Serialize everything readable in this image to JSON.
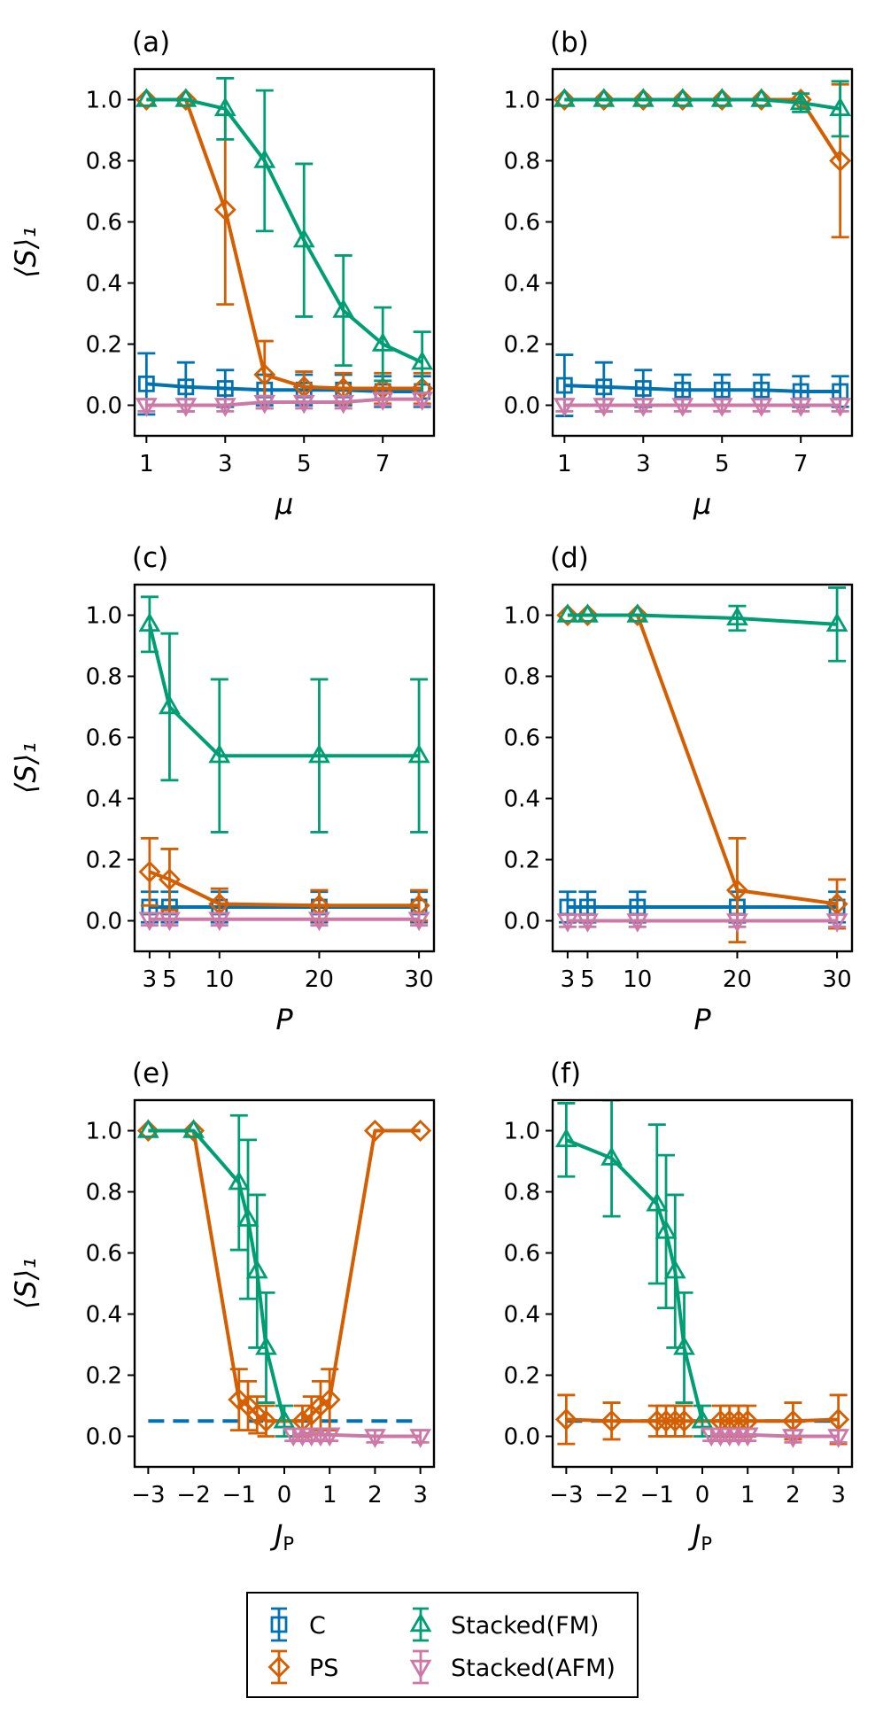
{
  "series_info": [
    {
      "key": "C",
      "label": "C",
      "color": "#0072B2",
      "marker": "square"
    },
    {
      "key": "PS",
      "label": "PS",
      "color": "#D55E00",
      "marker": "diamond"
    },
    {
      "key": "FM",
      "label": "Stacked(FM)",
      "color": "#009E73",
      "marker": "triangle-up"
    },
    {
      "key": "AFM",
      "label": "Stacked(AFM)",
      "color": "#CC79A7",
      "marker": "triangle-down"
    }
  ],
  "chart_data": [
    {
      "type": "line",
      "panel": "(a)",
      "xlabel": "μ",
      "ylabel": "⟨S⟩₁",
      "xlim": [
        0.7,
        8.3
      ],
      "ylim": [
        -0.1,
        1.1
      ],
      "xticks": [
        1,
        3,
        5,
        7
      ],
      "xticklabels": [
        "1",
        "3",
        "5",
        "7"
      ],
      "yticks": [
        0.0,
        0.2,
        0.4,
        0.6,
        0.8,
        1.0
      ],
      "yticklabels": [
        "0.0",
        "0.2",
        "0.4",
        "0.6",
        "0.8",
        "1.0"
      ],
      "series": [
        {
          "key": "C",
          "x": [
            1,
            2,
            3,
            4,
            5,
            6,
            7,
            8
          ],
          "y": [
            0.07,
            0.06,
            0.055,
            0.05,
            0.05,
            0.05,
            0.045,
            0.045
          ],
          "err": [
            0.1,
            0.08,
            0.06,
            0.05,
            0.05,
            0.05,
            0.05,
            0.05
          ]
        },
        {
          "key": "PS",
          "x": [
            1,
            2,
            3,
            4,
            5,
            6,
            7,
            8
          ],
          "y": [
            1.0,
            1.0,
            0.64,
            0.1,
            0.06,
            0.055,
            0.055,
            0.055
          ],
          "err": [
            0,
            0,
            0.31,
            0.11,
            0.05,
            0.05,
            0.05,
            0.05
          ]
        },
        {
          "key": "FM",
          "x": [
            1,
            2,
            3,
            4,
            5,
            6,
            7,
            8
          ],
          "y": [
            1.0,
            1.0,
            0.97,
            0.8,
            0.54,
            0.31,
            0.2,
            0.14
          ],
          "err": [
            0,
            0,
            0.1,
            0.23,
            0.25,
            0.18,
            0.12,
            0.1
          ]
        },
        {
          "key": "AFM",
          "x": [
            1,
            2,
            3,
            4,
            5,
            6,
            7,
            8
          ],
          "y": [
            0.0,
            0.0,
            0.0,
            0.01,
            0.01,
            0.01,
            0.02,
            0.02
          ],
          "err": [
            0.02,
            0.02,
            0.02,
            0.02,
            0.02,
            0.02,
            0.02,
            0.02
          ]
        }
      ]
    },
    {
      "type": "line",
      "panel": "(b)",
      "xlabel": "μ",
      "ylabel": "",
      "xlim": [
        0.7,
        8.3
      ],
      "ylim": [
        -0.1,
        1.1
      ],
      "xticks": [
        1,
        3,
        5,
        7
      ],
      "xticklabels": [
        "1",
        "3",
        "5",
        "7"
      ],
      "yticks": [
        0.0,
        0.2,
        0.4,
        0.6,
        0.8,
        1.0
      ],
      "yticklabels": [
        "0.0",
        "0.2",
        "0.4",
        "0.6",
        "0.8",
        "1.0"
      ],
      "series": [
        {
          "key": "C",
          "x": [
            1,
            2,
            3,
            4,
            5,
            6,
            7,
            8
          ],
          "y": [
            0.065,
            0.06,
            0.055,
            0.05,
            0.05,
            0.05,
            0.045,
            0.045
          ],
          "err": [
            0.1,
            0.08,
            0.06,
            0.05,
            0.05,
            0.05,
            0.05,
            0.05
          ]
        },
        {
          "key": "PS",
          "x": [
            1,
            2,
            3,
            4,
            5,
            6,
            7,
            8
          ],
          "y": [
            1.0,
            1.0,
            1.0,
            1.0,
            1.0,
            1.0,
            1.0,
            0.8
          ],
          "err": [
            0,
            0,
            0,
            0,
            0,
            0,
            0,
            0.25
          ]
        },
        {
          "key": "FM",
          "x": [
            1,
            2,
            3,
            4,
            5,
            6,
            7,
            8
          ],
          "y": [
            1.0,
            1.0,
            1.0,
            1.0,
            1.0,
            1.0,
            0.99,
            0.97
          ],
          "err": [
            0,
            0,
            0,
            0,
            0,
            0,
            0.03,
            0.09
          ]
        },
        {
          "key": "AFM",
          "x": [
            1,
            2,
            3,
            4,
            5,
            6,
            7,
            8
          ],
          "y": [
            0.0,
            0.0,
            0.0,
            0.0,
            0.0,
            0.0,
            0.0,
            0.0
          ],
          "err": [
            0.02,
            0.02,
            0.02,
            0.02,
            0.02,
            0.02,
            0.02,
            0.02
          ]
        }
      ]
    },
    {
      "type": "line",
      "panel": "(c)",
      "xlabel": "P",
      "ylabel": "⟨S⟩₁",
      "xlim": [
        1.5,
        31.5
      ],
      "ylim": [
        -0.1,
        1.1
      ],
      "xticks": [
        3,
        5,
        10,
        20,
        30
      ],
      "xticklabels": [
        "3",
        "5",
        "10",
        "20",
        "30"
      ],
      "yticks": [
        0.0,
        0.2,
        0.4,
        0.6,
        0.8,
        1.0
      ],
      "yticklabels": [
        "0.0",
        "0.2",
        "0.4",
        "0.6",
        "0.8",
        "1.0"
      ],
      "series": [
        {
          "key": "C",
          "x": [
            3,
            5,
            10,
            20,
            30
          ],
          "y": [
            0.045,
            0.045,
            0.045,
            0.045,
            0.045
          ],
          "err": [
            0.05,
            0.05,
            0.05,
            0.05,
            0.05
          ]
        },
        {
          "key": "PS",
          "x": [
            3,
            5,
            10,
            20,
            30
          ],
          "y": [
            0.16,
            0.135,
            0.055,
            0.05,
            0.05
          ],
          "err": [
            0.11,
            0.1,
            0.05,
            0.05,
            0.05
          ]
        },
        {
          "key": "FM",
          "x": [
            3,
            5,
            10,
            20,
            30
          ],
          "y": [
            0.97,
            0.7,
            0.54,
            0.54,
            0.54
          ],
          "err": [
            0.09,
            0.24,
            0.25,
            0.25,
            0.25
          ]
        },
        {
          "key": "AFM",
          "x": [
            3,
            5,
            10,
            20,
            30
          ],
          "y": [
            0.005,
            0.005,
            0.005,
            0.005,
            0.005
          ],
          "err": [
            0.02,
            0.02,
            0.02,
            0.02,
            0.02
          ]
        }
      ]
    },
    {
      "type": "line",
      "panel": "(d)",
      "xlabel": "P",
      "ylabel": "",
      "xlim": [
        1.5,
        31.5
      ],
      "ylim": [
        -0.1,
        1.1
      ],
      "xticks": [
        3,
        5,
        10,
        20,
        30
      ],
      "xticklabels": [
        "3",
        "5",
        "10",
        "20",
        "30"
      ],
      "yticks": [
        0.0,
        0.2,
        0.4,
        0.6,
        0.8,
        1.0
      ],
      "yticklabels": [
        "0.0",
        "0.2",
        "0.4",
        "0.6",
        "0.8",
        "1.0"
      ],
      "series": [
        {
          "key": "C",
          "x": [
            3,
            5,
            10,
            20,
            30
          ],
          "y": [
            0.045,
            0.045,
            0.045,
            0.045,
            0.045
          ],
          "err": [
            0.05,
            0.05,
            0.05,
            0.05,
            0.05
          ]
        },
        {
          "key": "PS",
          "x": [
            3,
            5,
            10,
            20,
            30
          ],
          "y": [
            1.0,
            1.0,
            1.0,
            0.1,
            0.055
          ],
          "err": [
            0,
            0,
            0,
            0.17,
            0.08
          ]
        },
        {
          "key": "FM",
          "x": [
            3,
            5,
            10,
            20,
            30
          ],
          "y": [
            1.0,
            1.0,
            1.0,
            0.99,
            0.97
          ],
          "err": [
            0,
            0,
            0,
            0.04,
            0.12
          ]
        },
        {
          "key": "AFM",
          "x": [
            3,
            5,
            10,
            20,
            30
          ],
          "y": [
            0.0,
            0.0,
            0.0,
            0.0,
            0.0
          ],
          "err": [
            0.02,
            0.02,
            0.02,
            0.02,
            0.02
          ]
        }
      ]
    },
    {
      "type": "line",
      "panel": "(e)",
      "xlabel": "J",
      "xlabel_sub": "P",
      "ylabel": "⟨S⟩₁",
      "xlim": [
        -3.3,
        3.3
      ],
      "ylim": [
        -0.1,
        1.1
      ],
      "xticks": [
        -3,
        -2,
        -1,
        0,
        1,
        2,
        3
      ],
      "xticklabels": [
        "−3",
        "−2",
        "−1",
        "0",
        "1",
        "2",
        "3"
      ],
      "yticks": [
        0.0,
        0.2,
        0.4,
        0.6,
        0.8,
        1.0
      ],
      "yticklabels": [
        "0.0",
        "0.2",
        "0.4",
        "0.6",
        "0.8",
        "1.0"
      ],
      "series": [
        {
          "key": "C",
          "x": [
            -3,
            3
          ],
          "y": [
            0.05,
            0.05
          ],
          "err": null,
          "style": "dashed",
          "markers": false
        },
        {
          "key": "PS",
          "x": [
            -3,
            -2,
            -1,
            -0.8,
            -0.6,
            -0.4,
            0.4,
            0.6,
            0.8,
            1,
            2,
            3
          ],
          "y": [
            1.0,
            1.0,
            0.12,
            0.1,
            0.07,
            0.05,
            0.05,
            0.07,
            0.1,
            0.12,
            1.0,
            1.0
          ],
          "err": [
            0,
            0,
            0.1,
            0.08,
            0.06,
            0.05,
            0.05,
            0.06,
            0.08,
            0.1,
            0,
            0
          ]
        },
        {
          "key": "FM",
          "x": [
            -3,
            -2,
            -1,
            -0.8,
            -0.6,
            -0.4,
            0
          ],
          "y": [
            1.0,
            1.0,
            0.83,
            0.71,
            0.54,
            0.29,
            0.05
          ],
          "err": [
            0,
            0,
            0.22,
            0.26,
            0.25,
            0.18,
            0.05
          ]
        },
        {
          "key": "AFM",
          "x": [
            0.2,
            0.4,
            0.6,
            0.8,
            1,
            2,
            3
          ],
          "y": [
            0.005,
            0.005,
            0.005,
            0.005,
            0.005,
            0.0,
            0.0
          ],
          "err": [
            0.02,
            0.02,
            0.02,
            0.02,
            0.02,
            0.02,
            0.02
          ]
        }
      ]
    },
    {
      "type": "line",
      "panel": "(f)",
      "xlabel": "J",
      "xlabel_sub": "P",
      "ylabel": "",
      "xlim": [
        -3.3,
        3.3
      ],
      "ylim": [
        -0.1,
        1.1
      ],
      "xticks": [
        -3,
        -2,
        -1,
        0,
        1,
        2,
        3
      ],
      "xticklabels": [
        "−3",
        "−2",
        "−1",
        "0",
        "1",
        "2",
        "3"
      ],
      "yticks": [
        0.0,
        0.2,
        0.4,
        0.6,
        0.8,
        1.0
      ],
      "yticklabels": [
        "0.0",
        "0.2",
        "0.4",
        "0.6",
        "0.8",
        "1.0"
      ],
      "series": [
        {
          "key": "C",
          "x": [
            -3,
            3
          ],
          "y": [
            0.05,
            0.05
          ],
          "err": null,
          "style": "dashed",
          "markers": false
        },
        {
          "key": "PS",
          "x": [
            -3,
            -2,
            -1,
            -0.8,
            -0.6,
            -0.4,
            0.4,
            0.6,
            0.8,
            1,
            2,
            3
          ],
          "y": [
            0.055,
            0.05,
            0.05,
            0.05,
            0.05,
            0.05,
            0.05,
            0.05,
            0.05,
            0.05,
            0.05,
            0.055
          ],
          "err": [
            0.08,
            0.06,
            0.05,
            0.05,
            0.05,
            0.05,
            0.05,
            0.05,
            0.05,
            0.05,
            0.06,
            0.08
          ]
        },
        {
          "key": "FM",
          "x": [
            -3,
            -2,
            -1,
            -0.8,
            -0.6,
            -0.4,
            0
          ],
          "y": [
            0.97,
            0.91,
            0.76,
            0.67,
            0.54,
            0.29,
            0.05
          ],
          "err": [
            0.12,
            0.19,
            0.26,
            0.25,
            0.25,
            0.18,
            0.05
          ]
        },
        {
          "key": "AFM",
          "x": [
            0.2,
            0.4,
            0.6,
            0.8,
            1,
            2,
            3
          ],
          "y": [
            0.005,
            0.005,
            0.005,
            0.005,
            0.005,
            0.0,
            0.0
          ],
          "err": [
            0.02,
            0.02,
            0.02,
            0.02,
            0.02,
            0.02,
            0.02
          ]
        }
      ]
    }
  ]
}
